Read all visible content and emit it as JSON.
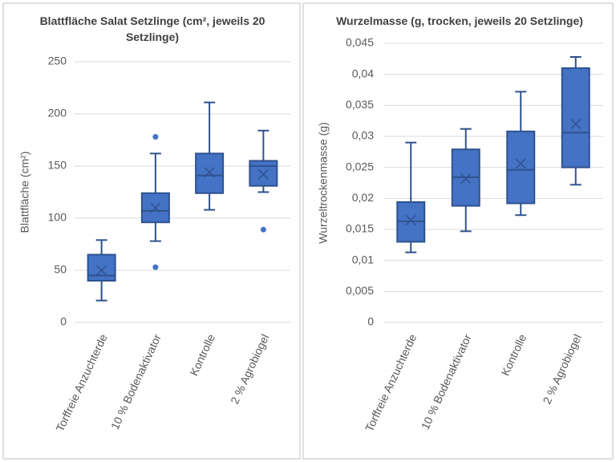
{
  "chart_data": [
    {
      "type": "box",
      "title": "Blattfläche Salat Setzlinge (cm², jeweils 20 Setzlinge)",
      "y_label": "Blattfläche (cm²)",
      "categories": [
        "Torffreie Anzuchterde",
        "10 % Bodenaktivator",
        "Kontrolle",
        "2 % Agrobiogel"
      ],
      "color": "#4472c4",
      "edge_color": "#2f528f",
      "grid": true,
      "ylim": [
        0,
        250
      ],
      "yticks": [
        0,
        50,
        100,
        150,
        200,
        250
      ],
      "boxes": [
        {
          "min": 21,
          "q1": 40,
          "median": 45,
          "q3": 65,
          "max": 79,
          "mean": 50,
          "outliers": []
        },
        {
          "min": 78,
          "q1": 96,
          "median": 107,
          "q3": 124,
          "max": 162,
          "mean": 110,
          "outliers": [
            178,
            53
          ]
        },
        {
          "min": 108,
          "q1": 124,
          "median": 141,
          "q3": 162,
          "max": 211,
          "mean": 144,
          "outliers": []
        },
        {
          "min": 125,
          "q1": 131,
          "median": 150,
          "q3": 155,
          "max": 184,
          "mean": 142,
          "outliers": [
            89
          ]
        }
      ]
    },
    {
      "type": "box",
      "title": "Wurzelmasse (g, trocken, jeweils 20 Setzlinge)",
      "y_label": "Wurzeltrockenmasse (g)",
      "categories": [
        "Torffreie Anzuchterde",
        "10 % Bodenaktivator",
        "Kontrolle",
        "2 % Agrobiogel"
      ],
      "color": "#4472c4",
      "edge_color": "#2f528f",
      "grid": true,
      "ylim": [
        0,
        0.045
      ],
      "yticks": [
        0,
        {
          "value": 0.005,
          "label": "0,005"
        },
        {
          "value": 0.01,
          "label": "0,01"
        },
        {
          "value": 0.015,
          "label": "0,015"
        },
        {
          "value": 0.02,
          "label": "0,02"
        },
        {
          "value": 0.025,
          "label": "0,025"
        },
        {
          "value": 0.03,
          "label": "0,03"
        },
        {
          "value": 0.035,
          "label": "0,035"
        },
        {
          "value": 0.04,
          "label": "0,04"
        },
        {
          "value": 0.045,
          "label": "0,045"
        }
      ],
      "boxes": [
        {
          "min": 0.0113,
          "q1": 0.013,
          "median": 0.0163,
          "q3": 0.0194,
          "max": 0.029,
          "mean": 0.0165,
          "outliers": []
        },
        {
          "min": 0.0147,
          "q1": 0.0188,
          "median": 0.0234,
          "q3": 0.0279,
          "max": 0.0312,
          "mean": 0.0232,
          "outliers": []
        },
        {
          "min": 0.0173,
          "q1": 0.0192,
          "median": 0.0246,
          "q3": 0.0308,
          "max": 0.0372,
          "mean": 0.0256,
          "outliers": []
        },
        {
          "min": 0.0222,
          "q1": 0.025,
          "median": 0.0306,
          "q3": 0.041,
          "max": 0.0428,
          "mean": 0.032,
          "outliers": []
        }
      ]
    }
  ]
}
